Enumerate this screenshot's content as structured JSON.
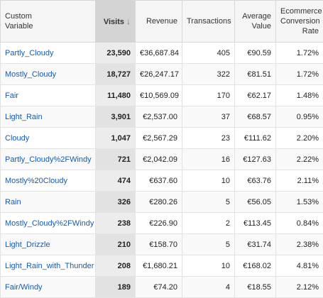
{
  "table": {
    "headers": {
      "dimension": [
        "Custom",
        "Variable"
      ],
      "visits": "Visits",
      "revenue": "Revenue",
      "transactions": "Transactions",
      "avg_value": [
        "Average",
        "Value"
      ],
      "conversion": [
        "Ecommerce",
        "Conversion",
        "Rate"
      ]
    },
    "sort_icon": "arrow-down-icon",
    "rows": [
      {
        "dim": "Partly_Cloudy",
        "visits": "23,590",
        "revenue": "€36,687.84",
        "transactions": "405",
        "avg": "€90.59",
        "rate": "1.72%"
      },
      {
        "dim": "Mostly_Cloudy",
        "visits": "18,727",
        "revenue": "€26,247.17",
        "transactions": "322",
        "avg": "€81.51",
        "rate": "1.72%"
      },
      {
        "dim": "Fair",
        "visits": "11,480",
        "revenue": "€10,569.09",
        "transactions": "170",
        "avg": "€62.17",
        "rate": "1.48%"
      },
      {
        "dim": "Light_Rain",
        "visits": "3,901",
        "revenue": "€2,537.00",
        "transactions": "37",
        "avg": "€68.57",
        "rate": "0.95%"
      },
      {
        "dim": "Cloudy",
        "visits": "1,047",
        "revenue": "€2,567.29",
        "transactions": "23",
        "avg": "€111.62",
        "rate": "2.20%"
      },
      {
        "dim": "Partly_Cloudy%2FWindy",
        "visits": "721",
        "revenue": "€2,042.09",
        "transactions": "16",
        "avg": "€127.63",
        "rate": "2.22%"
      },
      {
        "dim": "Mostly%20Cloudy",
        "visits": "474",
        "revenue": "€637.60",
        "transactions": "10",
        "avg": "€63.76",
        "rate": "2.11%"
      },
      {
        "dim": "Rain",
        "visits": "326",
        "revenue": "€280.26",
        "transactions": "5",
        "avg": "€56.05",
        "rate": "1.53%"
      },
      {
        "dim": "Mostly_Cloudy%2FWindy",
        "visits": "238",
        "revenue": "€226.90",
        "transactions": "2",
        "avg": "€113.45",
        "rate": "0.84%"
      },
      {
        "dim": "Light_Drizzle",
        "visits": "210",
        "revenue": "€158.70",
        "transactions": "5",
        "avg": "€31.74",
        "rate": "2.38%"
      },
      {
        "dim": "Light_Rain_with_Thunder",
        "visits": "208",
        "revenue": "€1,680.21",
        "transactions": "10",
        "avg": "€168.02",
        "rate": "4.81%"
      },
      {
        "dim": "Fair/Windy",
        "visits": "189",
        "revenue": "€74.20",
        "transactions": "4",
        "avg": "€18.55",
        "rate": "2.12%"
      }
    ]
  }
}
